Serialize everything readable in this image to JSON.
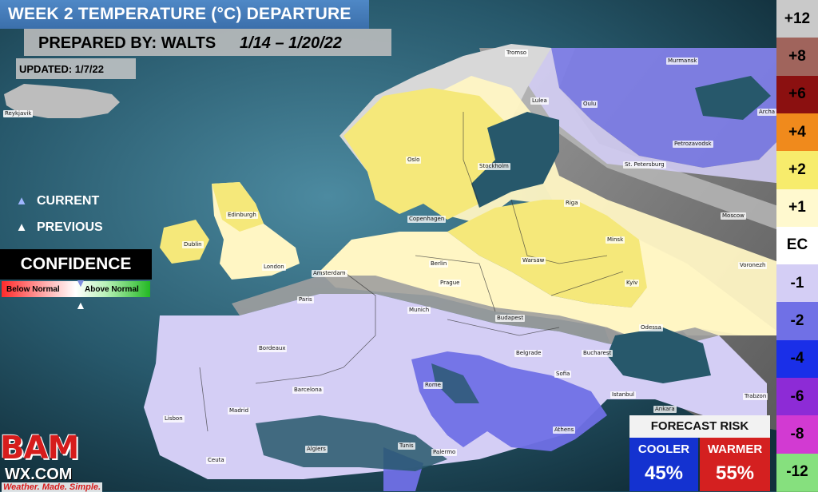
{
  "header": {
    "title": "WEEK 2 TEMPERATURE (°C) DEPARTURE",
    "prepared_by": "PREPARED BY: WALTS",
    "date_range": "1/14 – 1/20/22",
    "updated": "UPDATED: 1/7/22"
  },
  "legend": {
    "current": "CURRENT",
    "previous": "PREVIOUS",
    "confidence_title": "CONFIDENCE",
    "below_normal": "Below Normal",
    "above_normal": "Above Normal"
  },
  "scale": [
    {
      "label": "+12",
      "color": "#c9c9c9",
      "text": "#000000"
    },
    {
      "label": "+8",
      "color": "#a0645c",
      "text": "#000000"
    },
    {
      "label": "+6",
      "color": "#8b1010",
      "text": "#000000"
    },
    {
      "label": "+4",
      "color": "#f08a1c",
      "text": "#000000"
    },
    {
      "label": "+2",
      "color": "#f7ec6c",
      "text": "#000000"
    },
    {
      "label": "+1",
      "color": "#fff9cf",
      "text": "#000000"
    },
    {
      "label": "EC",
      "color": "#ffffff",
      "text": "#000000"
    },
    {
      "label": "-1",
      "color": "#d4cef5",
      "text": "#000000"
    },
    {
      "label": "-2",
      "color": "#7070e6",
      "text": "#000000"
    },
    {
      "label": "-4",
      "color": "#1a2fe8",
      "text": "#000000"
    },
    {
      "label": "-6",
      "color": "#8d2bd6",
      "text": "#000000"
    },
    {
      "label": "-8",
      "color": "#d23ad2",
      "text": "#000000"
    },
    {
      "label": "-12",
      "color": "#86e07e",
      "text": "#000000"
    }
  ],
  "forecast_risk": {
    "title": "FORECAST RISK",
    "cooler_label": "COOLER",
    "cooler_pct": "45%",
    "warmer_label": "WARMER",
    "warmer_pct": "55%"
  },
  "logo": {
    "brand": "BAM",
    "domain": "WX.COM",
    "tagline": "Weather. Made. Simple."
  },
  "cities": {
    "reykjavik": "Reykjavik",
    "tromso": "Tromso",
    "murmansk": "Murmansk",
    "arch": "Archa",
    "lulea": "Lulea",
    "oulu": "Oulu",
    "petrozavodsk": "Petrozavodsk",
    "oslo": "Oslo",
    "stockholm": "Stockholm",
    "st_petersburg": "St. Petersburg",
    "edinburgh": "Edinburgh",
    "riga": "Riga",
    "copenhagen": "Copenhagen",
    "moscow": "Moscow",
    "dublin": "Dublin",
    "minsk": "Minsk",
    "london": "London",
    "berlin": "Berlin",
    "warsaw": "Warsaw",
    "amsterdam": "Amsterdam",
    "voronezh": "Voronezh",
    "prague": "Prague",
    "kyiv": "Kyiv",
    "paris": "Paris",
    "munich": "Munich",
    "budapest": "Budapest",
    "odessa": "Odessa",
    "bordeaux": "Bordeaux",
    "belgrade": "Belgrade",
    "bucharest": "Bucharest",
    "sofia": "Sofia",
    "rome": "Rome",
    "barcelona": "Barcelona",
    "istanbul": "Istanbul",
    "ankara": "Ankara",
    "trabzon": "Trabzon",
    "madrid": "Madrid",
    "lisbon": "Lisbon",
    "athens": "Athens",
    "palermo": "Palermo",
    "tunis": "Tunis",
    "algiers": "Algiers",
    "ceuta": "Ceuta"
  }
}
